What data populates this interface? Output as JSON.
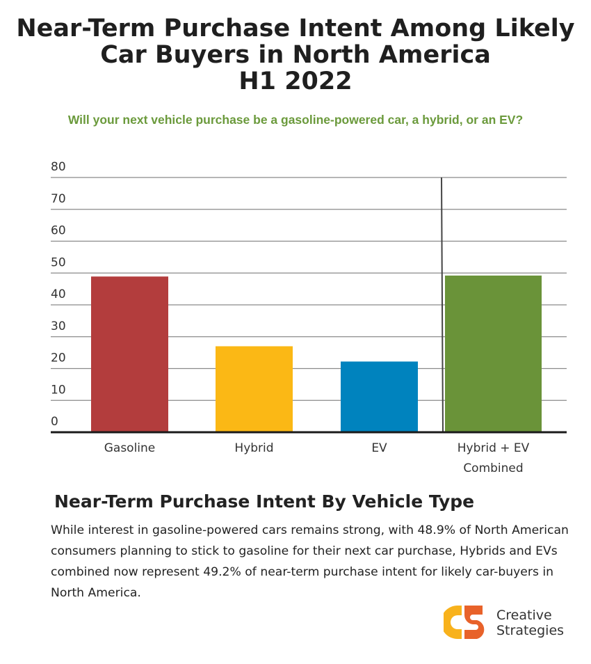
{
  "title_lines": [
    "Near-Term Purchase Intent Among Likely",
    "Car Buyers in North America",
    "H1 2022"
  ],
  "subtitle": "Will your next vehicle purchase be a gasoline-powered car, a hybrid, or an EV?",
  "chart_data": {
    "type": "bar",
    "categories": [
      "Gasoline",
      "Hybrid",
      "EV",
      "Hybrid + EV Combined"
    ],
    "category_lines": [
      [
        "Gasoline"
      ],
      [
        "Hybrid"
      ],
      [
        "EV"
      ],
      [
        "Hybrid + EV",
        "Combined"
      ]
    ],
    "values": [
      48.9,
      27.0,
      22.2,
      49.2
    ],
    "colors": [
      "#b33d3d",
      "#fbb815",
      "#0083be",
      "#6a9339"
    ],
    "ylim": [
      0,
      80
    ],
    "yticks": [
      0,
      10,
      20,
      30,
      40,
      50,
      60,
      70,
      80
    ],
    "grid": true,
    "xlabel": "",
    "ylabel": ""
  },
  "section_title": "Near-Term Purchase Intent By Vehicle Type",
  "body_text": "While interest in gasoline-powered cars remains strong, with 48.9% of North American consumers planning to stick to gasoline for their next car purchase, Hybrids and EVs combined now represent 49.2% of near-term purchase intent for likely car-buyers in North America.",
  "logo": {
    "lines": [
      "Creative",
      "Strategies"
    ],
    "colors": [
      "#f8b21c",
      "#e8622a"
    ]
  }
}
